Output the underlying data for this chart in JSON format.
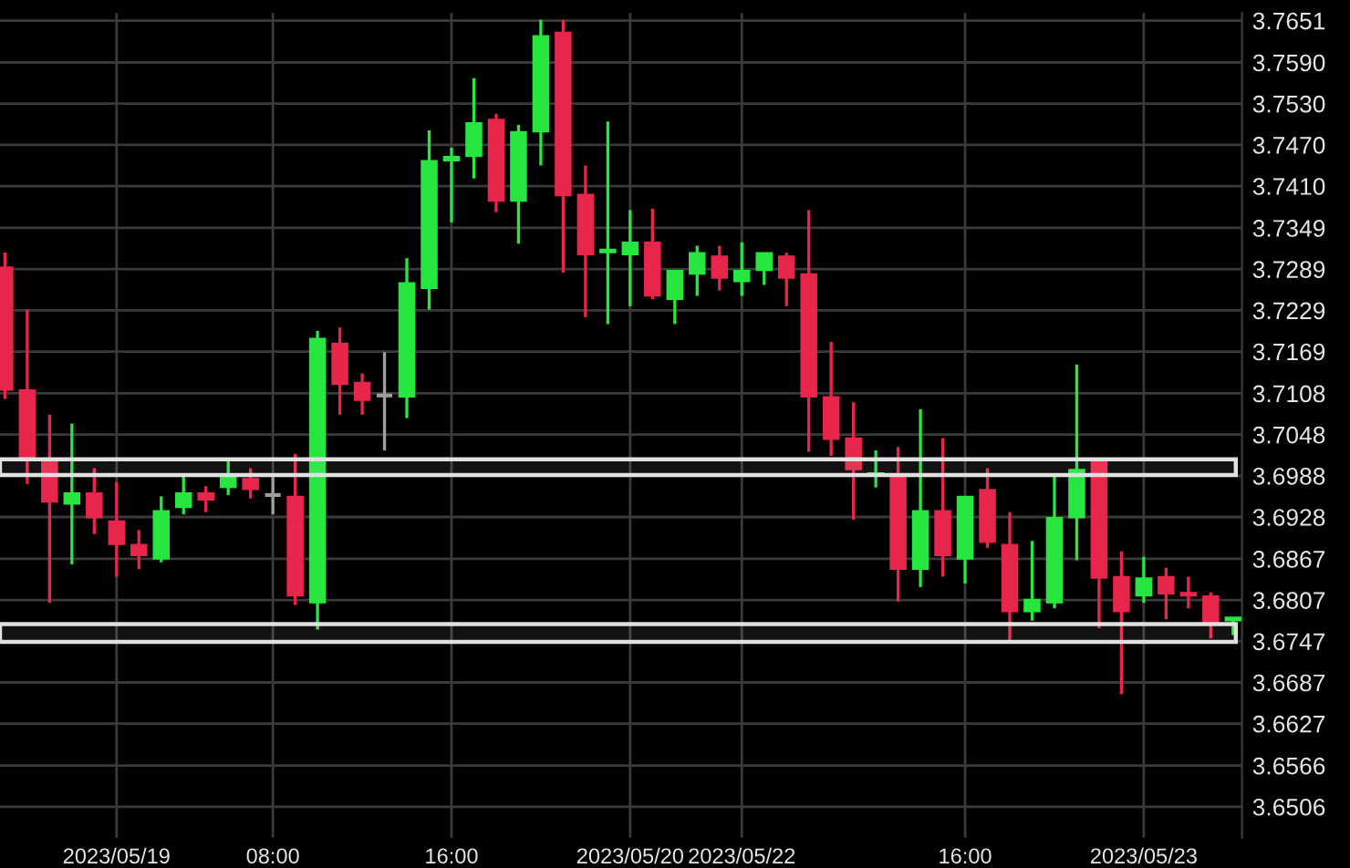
{
  "chart_data": {
    "type": "candlestick",
    "categories": [
      null,
      null,
      null,
      null,
      null,
      "2023/05/19",
      null,
      null,
      null,
      null,
      null,
      null,
      "08:00",
      null,
      null,
      null,
      null,
      null,
      null,
      null,
      "16:00",
      null,
      null,
      null,
      null,
      null,
      null,
      null,
      "2023/05/20",
      null,
      null,
      null,
      null,
      "2023/05/22",
      null,
      null,
      null,
      null,
      null,
      null,
      null,
      null,
      null,
      "16:00",
      null,
      null,
      null,
      null,
      null,
      null,
      null,
      "2023/05/23",
      null,
      null,
      null,
      null
    ],
    "ohlc": [
      [
        3.7292,
        3.7313,
        3.71,
        3.7113
      ],
      [
        3.7113,
        3.723,
        3.6976,
        3.7012
      ],
      [
        3.701,
        3.7077,
        3.6803,
        3.695
      ],
      [
        3.6947,
        3.7064,
        3.6859,
        3.6963
      ],
      [
        3.6963,
        3.6999,
        3.6903,
        3.6927
      ],
      [
        3.6922,
        3.6979,
        3.6841,
        3.6888
      ],
      [
        3.6888,
        3.6909,
        3.6852,
        3.6872
      ],
      [
        3.6867,
        3.6958,
        3.6862,
        3.6937
      ],
      [
        3.6942,
        3.6989,
        3.6932,
        3.6963
      ],
      [
        3.6963,
        3.6973,
        3.6935,
        3.6953
      ],
      [
        3.6971,
        3.7012,
        3.696,
        3.6989
      ],
      [
        3.6984,
        3.6999,
        3.6955,
        3.6968
      ],
      [
        3.696,
        3.6986,
        3.6932,
        3.696
      ],
      [
        3.6958,
        3.702,
        3.68,
        3.6813
      ],
      [
        3.6803,
        3.7199,
        3.6764,
        3.7188
      ],
      [
        3.7181,
        3.7204,
        3.7077,
        3.7121
      ],
      [
        3.7124,
        3.7137,
        3.7077,
        3.7098
      ],
      [
        3.7105,
        3.7168,
        3.7025,
        3.7105
      ],
      [
        3.7103,
        3.7305,
        3.7072,
        3.7269
      ],
      [
        3.7261,
        3.7491,
        3.723,
        3.7447
      ],
      [
        3.7447,
        3.7466,
        3.7357,
        3.7453
      ],
      [
        3.7453,
        3.7567,
        3.7421,
        3.7502
      ],
      [
        3.7507,
        3.7515,
        3.7372,
        3.7388
      ],
      [
        3.7388,
        3.7499,
        3.7326,
        3.7489
      ],
      [
        3.7489,
        3.7652,
        3.744,
        3.7629
      ],
      [
        3.7634,
        3.7652,
        3.7284,
        3.7396
      ],
      [
        3.7398,
        3.744,
        3.7219,
        3.731
      ],
      [
        3.7313,
        3.7504,
        3.7209,
        3.7318
      ],
      [
        3.731,
        3.7375,
        3.7235,
        3.7328
      ],
      [
        3.7328,
        3.7377,
        3.7245,
        3.725
      ],
      [
        3.7245,
        3.7287,
        3.7209,
        3.7287
      ],
      [
        3.7282,
        3.7323,
        3.725,
        3.7313
      ],
      [
        3.7308,
        3.7323,
        3.7258,
        3.7276
      ],
      [
        3.7271,
        3.7328,
        3.725,
        3.7287
      ],
      [
        3.7287,
        3.7313,
        3.7266,
        3.7313
      ],
      [
        3.7308,
        3.7313,
        3.7235,
        3.7276
      ],
      [
        3.7282,
        3.7375,
        3.7023,
        3.7103
      ],
      [
        3.7103,
        3.7183,
        3.7017,
        3.7041
      ],
      [
        3.7043,
        3.7095,
        3.6924,
        3.6997
      ],
      [
        3.6989,
        3.7025,
        3.6971,
        3.6992
      ],
      [
        3.6989,
        3.703,
        3.6805,
        3.6852
      ],
      [
        3.6852,
        3.7085,
        3.6826,
        3.6937
      ],
      [
        3.6937,
        3.7043,
        3.6841,
        3.6872
      ],
      [
        3.6867,
        3.6958,
        3.6831,
        3.6958
      ],
      [
        3.6968,
        3.6999,
        3.6883,
        3.6891
      ],
      [
        3.6888,
        3.6935,
        3.6746,
        3.679
      ],
      [
        3.679,
        3.6893,
        3.6777,
        3.6808
      ],
      [
        3.6803,
        3.6989,
        3.6795,
        3.6927
      ],
      [
        3.6927,
        3.715,
        3.6865,
        3.6997
      ],
      [
        3.701,
        3.7012,
        3.6766,
        3.6839
      ],
      [
        3.6841,
        3.6878,
        3.667,
        3.679
      ],
      [
        3.6813,
        3.687,
        3.6803,
        3.6839
      ],
      [
        3.6841,
        3.6854,
        3.6779,
        3.6816
      ],
      [
        3.6818,
        3.6841,
        3.6795,
        3.6813
      ],
      [
        3.6813,
        3.6818,
        3.6751,
        3.6774
      ],
      [
        3.6777,
        3.6782,
        3.6756,
        3.6782
      ]
    ],
    "colors": [
      "#e8254a",
      "#e8254a",
      "#e8254a",
      "#26e63f",
      "#e8254a",
      "#e8254a",
      "#e8254a",
      "#26e63f",
      "#26e63f",
      "#e8254a",
      "#26e63f",
      "#e8254a",
      "#9e9e9e",
      "#e8254a",
      "#26e63f",
      "#e8254a",
      "#e8254a",
      "#9e9e9e",
      "#26e63f",
      "#26e63f",
      "#26e63f",
      "#26e63f",
      "#e8254a",
      "#26e63f",
      "#26e63f",
      "#e8254a",
      "#e8254a",
      "#26e63f",
      "#26e63f",
      "#e8254a",
      "#26e63f",
      "#26e63f",
      "#e8254a",
      "#26e63f",
      "#26e63f",
      "#e8254a",
      "#e8254a",
      "#e8254a",
      "#e8254a",
      "#26e63f",
      "#e8254a",
      "#26e63f",
      "#e8254a",
      "#26e63f",
      "#e8254a",
      "#e8254a",
      "#26e63f",
      "#26e63f",
      "#26e63f",
      "#e8254a",
      "#e8254a",
      "#26e63f",
      "#e8254a",
      "#e8254a",
      "#e8254a",
      "#26e63f"
    ],
    "ylim": [
      3.6461,
      3.7662
    ],
    "yticks": [
      3.6506,
      3.6566,
      3.6627,
      3.6687,
      3.6747,
      3.6807,
      3.6867,
      3.6928,
      3.6988,
      3.7048,
      3.7108,
      3.7169,
      3.7229,
      3.7289,
      3.7349,
      {
        "value": 3.741,
        "label": "3.7410"
      },
      {
        "value": 3.747,
        "label": "3.7470"
      },
      {
        "value": 3.753,
        "label": "3.7530"
      },
      {
        "value": 3.759,
        "label": "3.7590"
      },
      3.7651
    ],
    "grid": true,
    "bands": [
      {
        "axis": "y",
        "from": 3.6989,
        "to": 3.7012,
        "color": "#e0e0e0"
      },
      {
        "axis": "y",
        "from": 3.6746,
        "to": 3.6772,
        "color": "#e0e0e0"
      }
    ]
  }
}
